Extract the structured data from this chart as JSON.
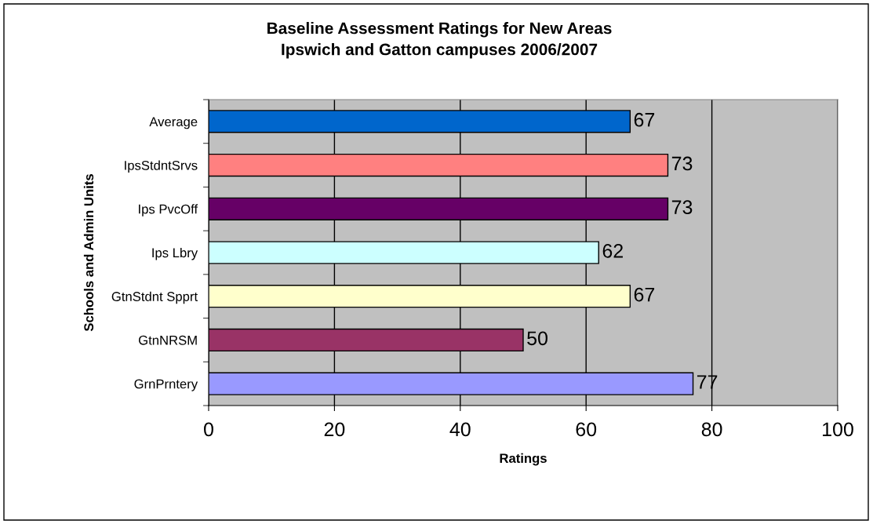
{
  "chart_data": {
    "type": "bar",
    "orientation": "horizontal",
    "title": "Baseline Assessment Ratings for New Areas\nIpswich and Gatton campuses 2006/2007",
    "xlabel": "Ratings",
    "ylabel": "Schools and Admin Units",
    "categories": [
      "Average",
      "IpsStdntSrvs",
      "Ips PvcOff",
      "Ips Lbry",
      "GtnStdnt Spprt",
      "GtnNRSM",
      "GrnPrntery"
    ],
    "values": [
      67,
      73,
      73,
      62,
      67,
      50,
      77
    ],
    "colors": [
      "#0066cc",
      "#ff8080",
      "#660066",
      "#ccffff",
      "#ffffcc",
      "#993366",
      "#9999ff"
    ],
    "xlim": [
      0,
      100
    ],
    "xticks": [
      0,
      20,
      40,
      60,
      80,
      100
    ],
    "grid": "x",
    "data_labels": true,
    "legend": false
  }
}
